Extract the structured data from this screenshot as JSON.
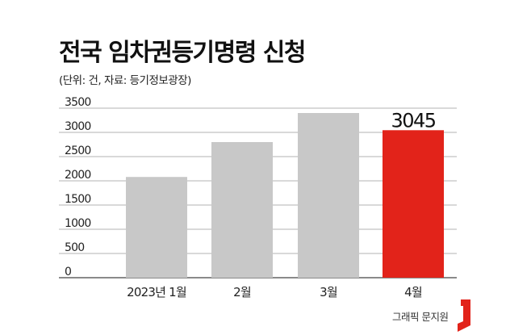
{
  "header": {
    "title": "전국 임차권등기명령 신청",
    "subtitle": "(단위: 건, 자료: 등기정보광장)"
  },
  "credit": {
    "text": "그래픽 문지원",
    "logo_color": "#e2231a"
  },
  "chart_data": {
    "type": "bar",
    "categories": [
      "2023년 1월",
      "2월",
      "3월",
      "4월"
    ],
    "values": [
      2080,
      2800,
      3400,
      3045
    ],
    "highlight_index": 3,
    "highlight_label": "3045",
    "colors": {
      "default": "#c8c8c8",
      "highlight": "#e2231a"
    },
    "yticks": [
      0,
      500,
      1000,
      1500,
      2000,
      2500,
      3000,
      3500
    ],
    "ylim": [
      0,
      3500
    ],
    "grid": true,
    "title": "",
    "xlabel": "",
    "ylabel": ""
  }
}
